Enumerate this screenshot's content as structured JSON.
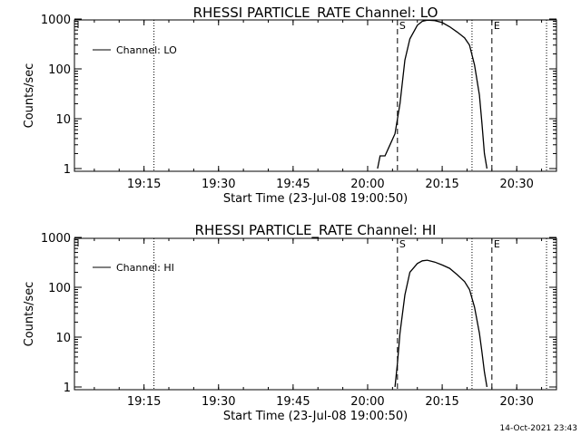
{
  "footer": {
    "timestamp": "14-Oct-2021 23:43"
  },
  "chart_data": [
    {
      "type": "line",
      "title": "RHESSI PARTICLE_RATE Channel: LO",
      "xlabel": "Start Time (23-Jul-08 19:00:50)",
      "ylabel": "Counts/sec",
      "y_scale": "log",
      "ylim": [
        1,
        1200
      ],
      "xlim": [
        "19:01",
        "20:38"
      ],
      "x_ticks": [
        "19:15",
        "19:30",
        "19:45",
        "20:00",
        "20:15",
        "20:30"
      ],
      "y_ticks": [
        "1",
        "10",
        "100",
        "1000"
      ],
      "legend": {
        "placement": "top-left",
        "entries": [
          "Channel: LO"
        ]
      },
      "markers": [
        {
          "label": "S",
          "x": "20:06",
          "style": "dashed"
        },
        {
          "label": "E",
          "x": "20:25",
          "style": "dashed"
        }
      ],
      "dotted_lines": [
        "19:17",
        "20:21",
        "20:36"
      ],
      "series": [
        {
          "name": "Channel: LO",
          "x": [
            "20:02",
            "20:02.5",
            "20:03.5",
            "20:04.5",
            "20:05.5",
            "20:06.5",
            "20:07.5",
            "20:08.5",
            "20:10",
            "20:11",
            "20:12",
            "20:13.5",
            "20:15",
            "20:16.5",
            "20:18",
            "20:19.5",
            "20:20.5",
            "20:21.5",
            "20:22.5",
            "20:23",
            "20:23.5",
            "20:24"
          ],
          "y": [
            1,
            1.8,
            1.8,
            3,
            5,
            20,
            150,
            400,
            750,
            900,
            950,
            930,
            850,
            700,
            550,
            420,
            300,
            120,
            30,
            8,
            2,
            1
          ]
        }
      ]
    },
    {
      "type": "line",
      "title": "RHESSI PARTICLE_RATE Channel: HI",
      "xlabel": "Start Time (23-Jul-08 19:00:50)",
      "ylabel": "Counts/sec",
      "y_scale": "log",
      "ylim": [
        1,
        1200
      ],
      "xlim": [
        "19:01",
        "20:38"
      ],
      "x_ticks": [
        "19:15",
        "19:30",
        "19:45",
        "20:00",
        "20:15",
        "20:30"
      ],
      "y_ticks": [
        "1",
        "10",
        "100",
        "1000"
      ],
      "legend": {
        "placement": "top-left",
        "entries": [
          "Channel: HI"
        ]
      },
      "markers": [
        {
          "label": "S",
          "x": "20:06",
          "style": "dashed"
        },
        {
          "label": "E",
          "x": "20:25",
          "style": "dashed"
        }
      ],
      "dotted_lines": [
        "19:17",
        "20:21",
        "20:36"
      ],
      "series": [
        {
          "name": "Channel: HI",
          "x": [
            "20:05.5",
            "20:06",
            "20:06.5",
            "20:07.5",
            "20:08.5",
            "20:10",
            "20:11",
            "20:12",
            "20:13.5",
            "20:15",
            "20:16.5",
            "20:18",
            "20:19.5",
            "20:20.5",
            "20:21.5",
            "20:22.5",
            "20:23",
            "20:23.5",
            "20:24"
          ],
          "y": [
            1,
            3,
            12,
            70,
            200,
            300,
            340,
            350,
            320,
            280,
            240,
            180,
            130,
            90,
            40,
            12,
            5,
            2,
            1
          ]
        }
      ]
    }
  ]
}
